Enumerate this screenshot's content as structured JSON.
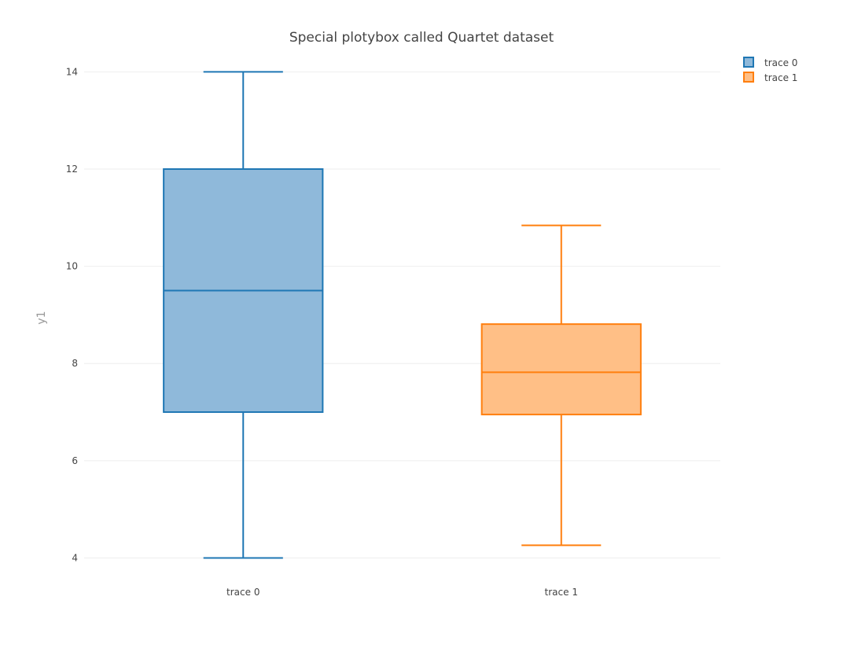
{
  "chart_data": {
    "type": "box",
    "title": "Special plotybox called Quartet dataset",
    "xlabel": "",
    "ylabel": "y1",
    "ylim": [
      3.7,
      14.2
    ],
    "yticks": [
      4,
      6,
      8,
      10,
      12,
      14
    ],
    "grid": true,
    "legend_position": "top-right",
    "categories": [
      "trace 0",
      "trace 1"
    ],
    "series": [
      {
        "name": "trace 0",
        "color": "#1f77b4",
        "fill": "#8fb9da",
        "min": 4,
        "q1": 7,
        "median": 9.5,
        "q3": 12,
        "max": 14
      },
      {
        "name": "trace 1",
        "color": "#ff7f0e",
        "fill": "#ffbf86",
        "min": 4.26,
        "q1": 6.95,
        "median": 7.82,
        "q3": 8.81,
        "max": 10.84
      }
    ]
  }
}
